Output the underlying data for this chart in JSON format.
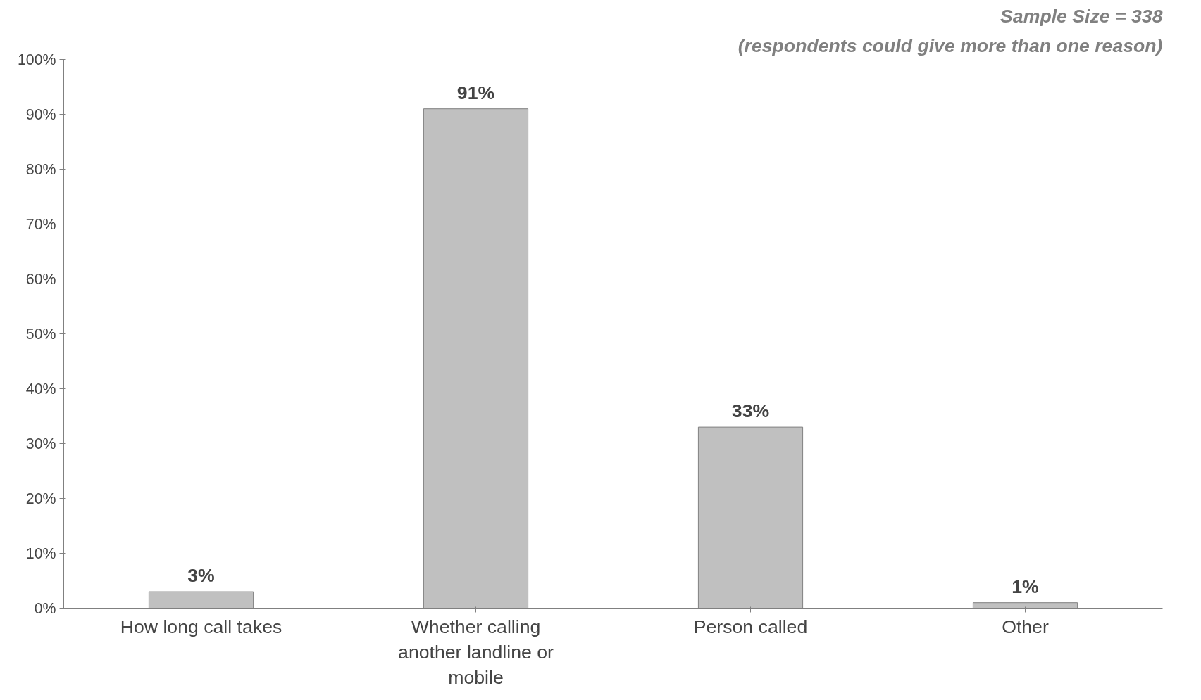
{
  "chart_data": {
    "type": "bar",
    "categories": [
      "How long call takes",
      "Whether calling another landline or mobile",
      "Person called",
      "Other"
    ],
    "values": [
      3,
      91,
      33,
      1
    ],
    "color": "#c0c0c0",
    "ylim": [
      0,
      100
    ],
    "yticks": [
      {
        "value": 0,
        "label": "0%"
      },
      {
        "value": 10,
        "label": "10%"
      },
      {
        "value": 20,
        "label": "20%"
      },
      {
        "value": 30,
        "label": "30%"
      },
      {
        "value": 40,
        "label": "40%"
      },
      {
        "value": 50,
        "label": "50%"
      },
      {
        "value": 60,
        "label": "60%"
      },
      {
        "value": 70,
        "label": "70%"
      },
      {
        "value": 80,
        "label": "80%"
      },
      {
        "value": 90,
        "label": "90%"
      },
      {
        "value": 100,
        "label": "100%"
      }
    ],
    "value_labels": [
      "3%",
      "91%",
      "33%",
      "1%"
    ],
    "annotations": [
      "Sample Size = 338",
      "(respondents could give more than one reason)"
    ],
    "grid": false
  }
}
